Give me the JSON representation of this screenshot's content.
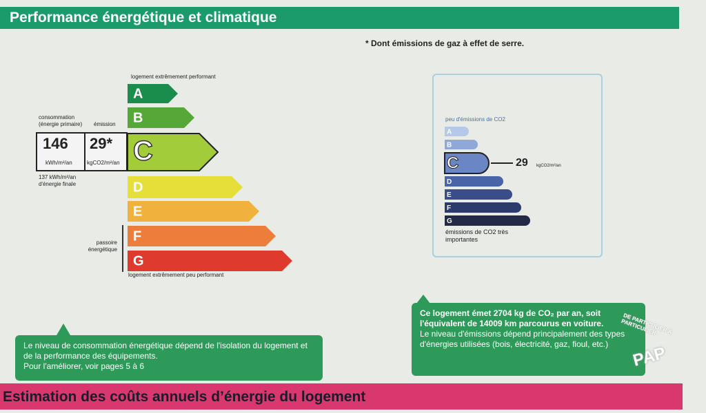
{
  "header": {
    "title": "Performance énergétique et climatique"
  },
  "note": "* Dont émissions de gaz à effet de serre.",
  "energy": {
    "top_label": "logement extrêmement performant",
    "bottom_label": "logement extrêmement peu performant",
    "grades": [
      "A",
      "B",
      "C",
      "D",
      "E",
      "F",
      "G"
    ],
    "consumption_heading": "consommation (énergie primaire)",
    "emission_heading": "émission",
    "consumption": "146",
    "emission": "29*",
    "consumption_unit": "kWh/m²/an",
    "emission_unit": "kgCO2/m²/an",
    "final_energy": "137 kWh/m²/an d'énergie finale",
    "passoire": "passoire énergétique"
  },
  "climate": {
    "top_label": "peu d'émissions de CO2",
    "grades": [
      "A",
      "B",
      "C",
      "D",
      "E",
      "F",
      "G"
    ],
    "value": "29",
    "unit": "kgCO2/m²/an",
    "bottom_label": "émissions de CO2 très importantes"
  },
  "info_left": [
    "Le niveau de consommation énergétique dépend de l'isolation du logement et de la performance des équipements.",
    "Pour l'améliorer, voir pages 5 à 6"
  ],
  "info_right": {
    "bold": "Ce logement émet 2704 kg de CO₂ par an, soit l'équivalent de 14009 km parcourus en voiture.",
    "text": "Le niveau d'émissions dépend principalement des types d'énergies utilisées (bois, électricité, gaz, fioul, etc.)"
  },
  "footer": {
    "title": "Estimation des coûts annuels d’énergie du logement"
  },
  "watermark": {
    "logo": "PAP",
    "ring": "DE PARTICULIER À PARTICULIER"
  }
}
